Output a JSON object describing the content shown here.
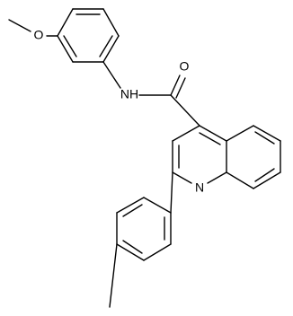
{
  "atoms": [
    "O",
    "NH",
    "O",
    "N"
  ]
}
